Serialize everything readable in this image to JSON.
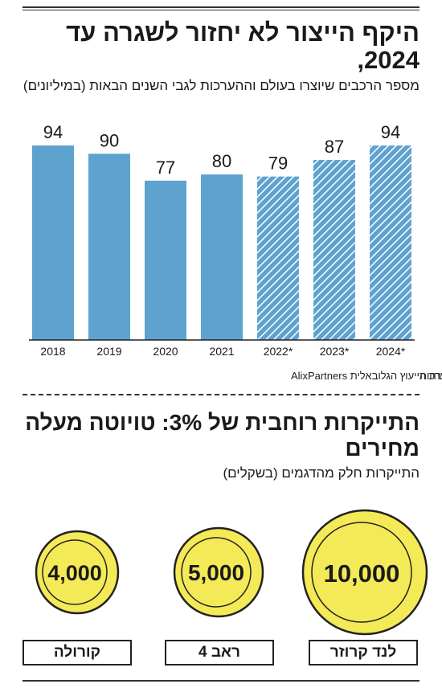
{
  "header": {
    "title": "היקף הייצור לא יחזור לשגרה עד 2024,",
    "subtitle": "מספר הרכבים שיוצרו בעולם וההערכות לגבי השנים הבאות (במיליונים)"
  },
  "chart_data": {
    "type": "bar",
    "categories": [
      "2018",
      "2019",
      "2020",
      "2021",
      "2022*",
      "2023*",
      "2024*"
    ],
    "values": [
      94,
      90,
      77,
      80,
      79,
      87,
      94
    ],
    "estimated": [
      false,
      false,
      false,
      false,
      true,
      true,
      true
    ],
    "ylim": [
      0,
      100
    ],
    "grid": false,
    "colors": {
      "bar": "#5ea3cf",
      "hatch": "#ffffff",
      "axis": "#222222"
    }
  },
  "notes": {
    "estimate": "*על פי ההערכות",
    "source": "מקור: חברת הייעוץ הגלובאלית AlixPartners"
  },
  "section2": {
    "title": "התייקרות רוחבית של 3%: טויוטה מעלה מחירים",
    "subtitle": "התייקרות חלק מהדגמים (בשקלים)",
    "coins": [
      {
        "model": "לנד קרוזר",
        "value": "10,000"
      },
      {
        "model": "ראב 4",
        "value": "5,000"
      },
      {
        "model": "קורולה",
        "value": "4,000"
      }
    ],
    "colors": {
      "coin": "#f4e957",
      "coin_edge": "#222222"
    }
  }
}
